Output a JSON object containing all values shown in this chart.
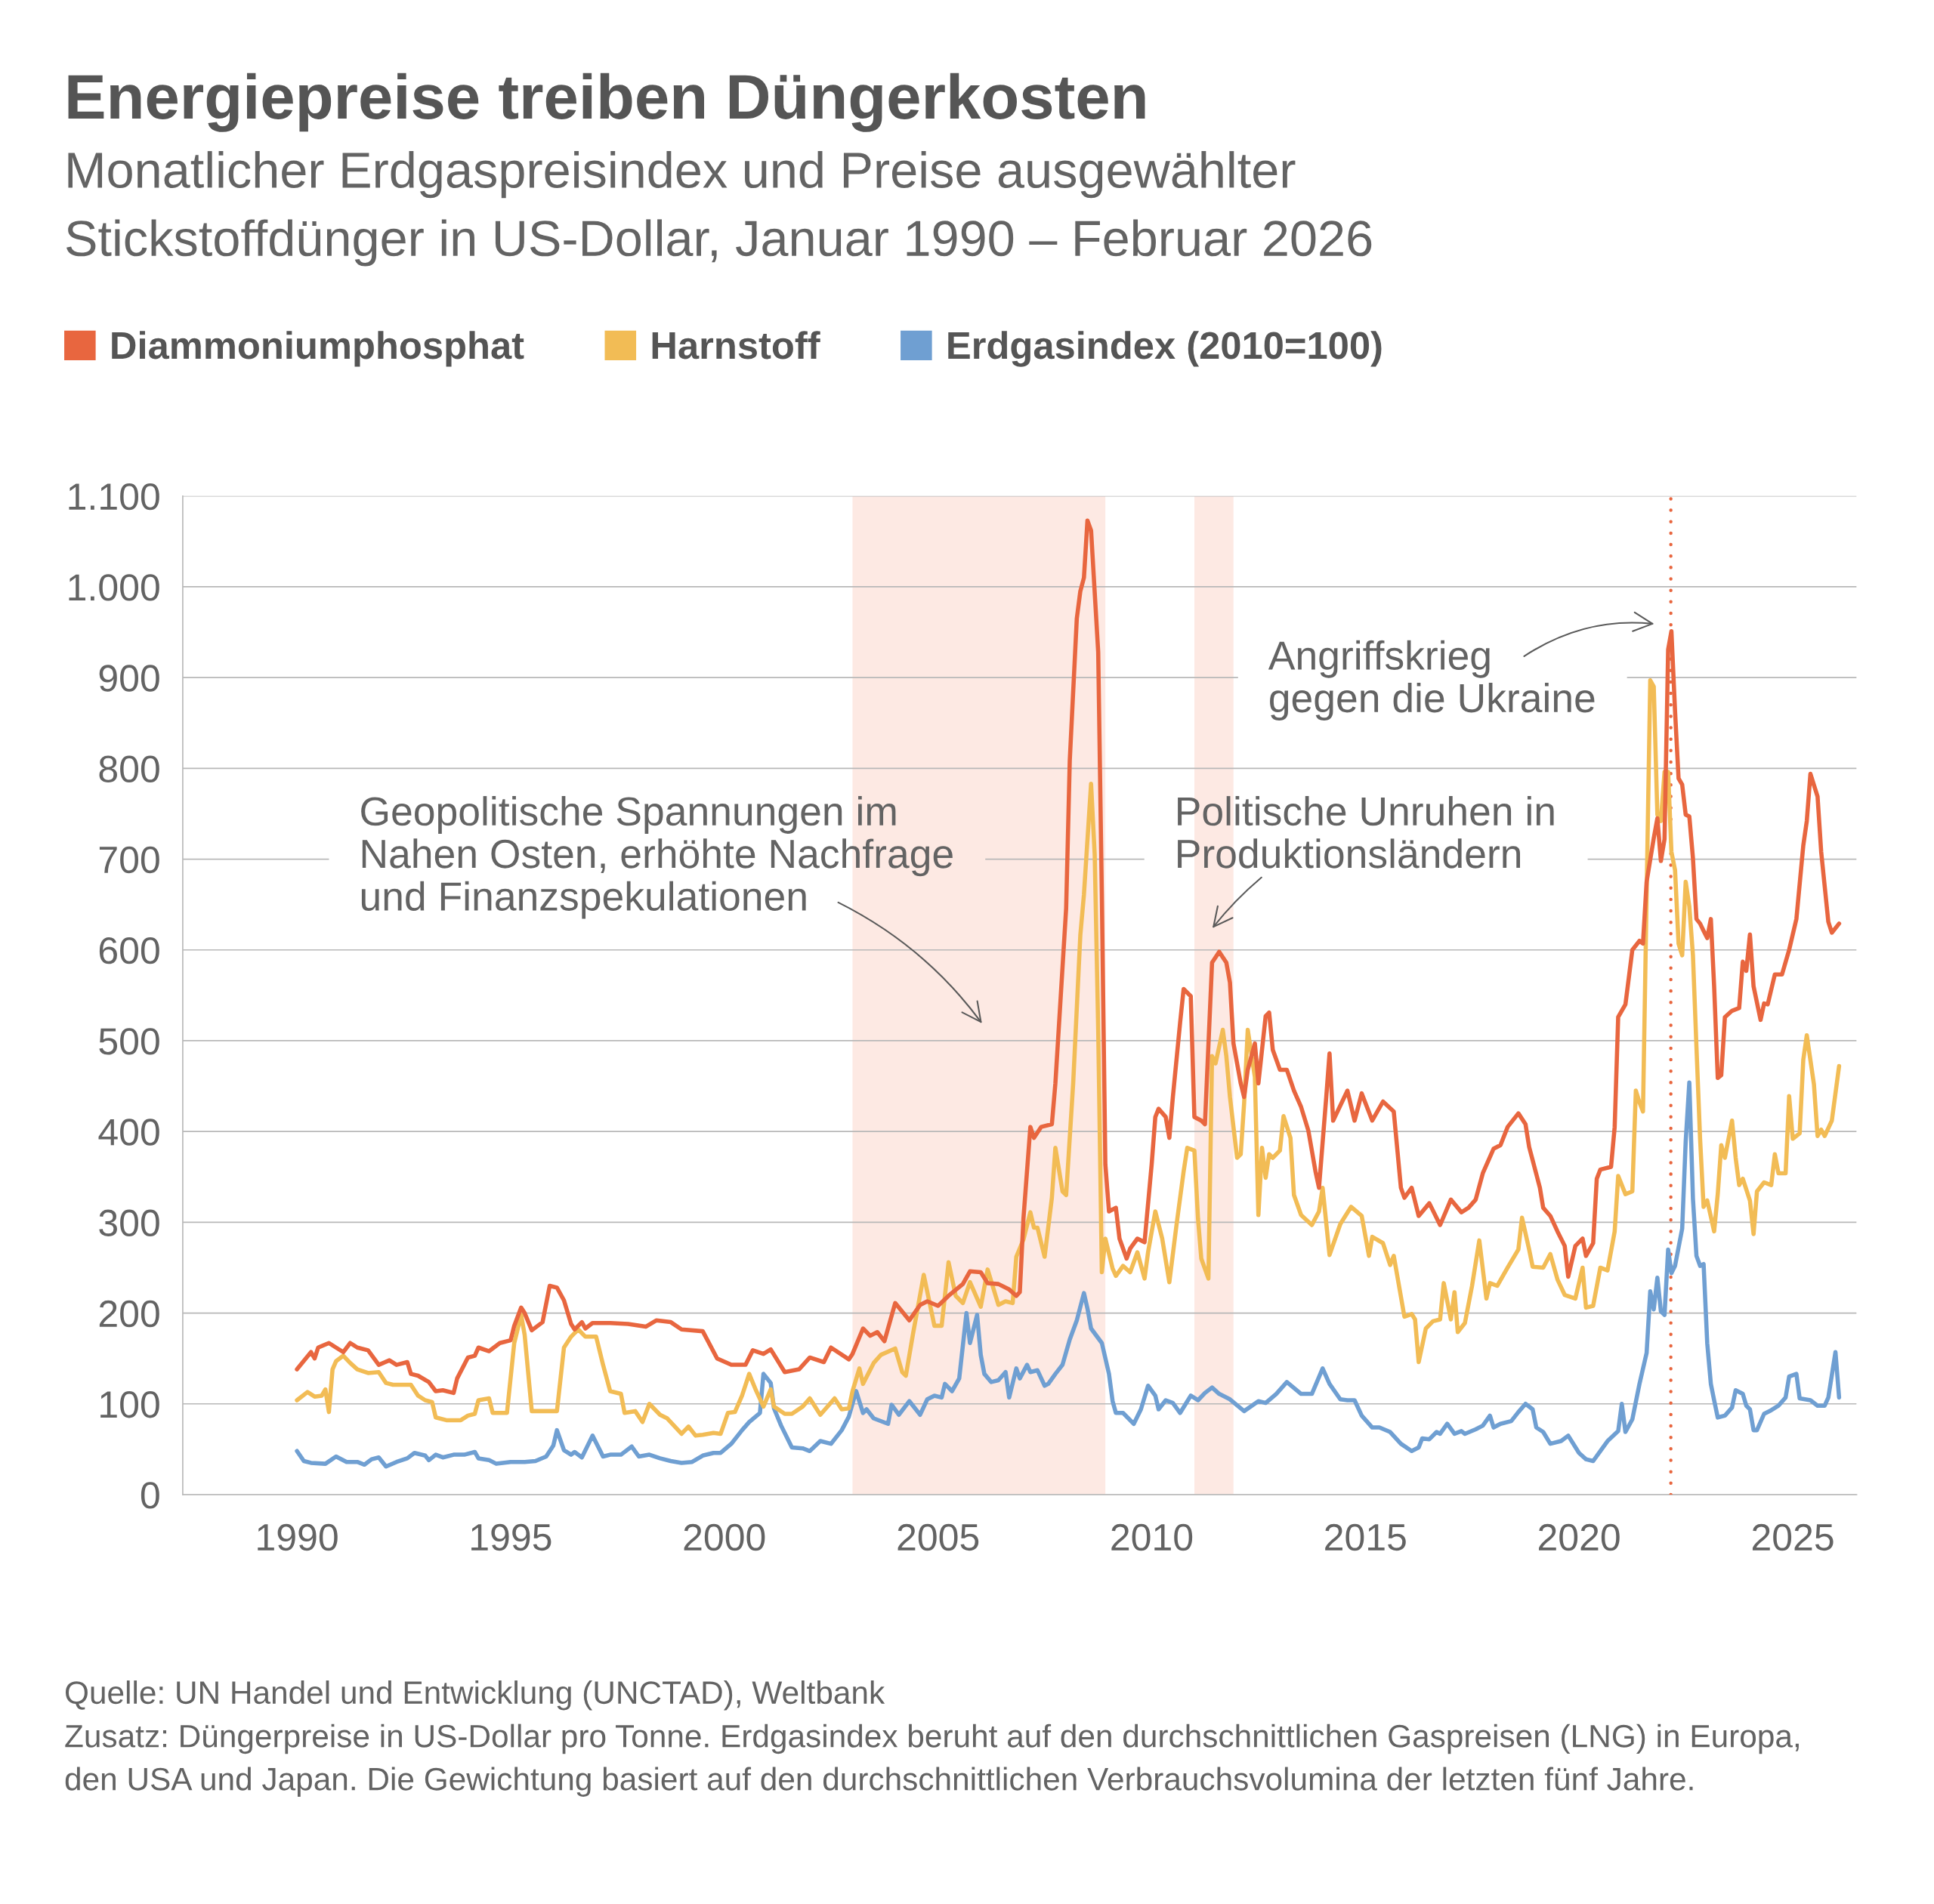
{
  "chart_data": {
    "type": "line",
    "title": "Energiepreise treiben Düngerkosten",
    "subtitle": "Monatlicher Erdgaspreisindex und Preise ausgewählter\nStickstoffdünger in US-Dollar, Januar 1990 – Februar 2026",
    "series": [
      {
        "name": "Diammoniumphosphat",
        "color": "#e8663f",
        "x": [
          "1990-01",
          "1990-05",
          "1990-06",
          "1990-07",
          "1990-10",
          "1990-12",
          "1991-02",
          "1991-04",
          "1991-06",
          "1991-09",
          "1991-12",
          "1992-03",
          "1992-05",
          "1992-08",
          "1992-09",
          "1992-11",
          "1993-02",
          "1993-04",
          "1993-06",
          "1993-09",
          "1993-10",
          "1994-01",
          "1994-03",
          "1994-04",
          "1994-07",
          "1994-10",
          "1995-01",
          "1995-02",
          "1995-04",
          "1995-05",
          "1995-07",
          "1995-10",
          "1995-12",
          "1996-02",
          "1996-04",
          "1996-06",
          "1996-07",
          "1996-09",
          "1996-10",
          "1996-12",
          "1997-05",
          "1997-10",
          "1998-03",
          "1998-06",
          "1998-10",
          "1999-01",
          "1999-07",
          "1999-11",
          "2000-03",
          "2000-07",
          "2000-09",
          "2000-12",
          "2001-02",
          "2001-06",
          "2001-10",
          "2002-01",
          "2002-05",
          "2002-07",
          "2002-12",
          "2003-01",
          "2003-04",
          "2003-06",
          "2003-08",
          "2003-10",
          "2004-01",
          "2004-05",
          "2004-08",
          "2004-10",
          "2005-01",
          "2005-04",
          "2005-08",
          "2005-10",
          "2006-01",
          "2006-03",
          "2006-06",
          "2006-09",
          "2006-11",
          "2006-12",
          "2007-01",
          "2007-03",
          "2007-04",
          "2007-06",
          "2007-09",
          "2007-10",
          "2008-01",
          "2008-02",
          "2008-04",
          "2008-05",
          "2008-06",
          "2008-07",
          "2008-08",
          "2008-10",
          "2008-11",
          "2008-12",
          "2009-01",
          "2009-03",
          "2009-04",
          "2009-06",
          "2009-07",
          "2009-09",
          "2009-11",
          "2010-01",
          "2010-02",
          "2010-03",
          "2010-05",
          "2010-06",
          "2010-07",
          "2010-09",
          "2010-10",
          "2010-12",
          "2011-01",
          "2011-03",
          "2011-04",
          "2011-06",
          "2011-08",
          "2011-10",
          "2011-11",
          "2011-12",
          "2012-02",
          "2012-03",
          "2012-04",
          "2012-06",
          "2012-07",
          "2012-09",
          "2012-10",
          "2012-11",
          "2013-01",
          "2013-03",
          "2013-05",
          "2013-07",
          "2013-09",
          "2013-11",
          "2013-12",
          "2014-02",
          "2014-03",
          "2014-04",
          "2014-08",
          "2014-10",
          "2014-12",
          "2015-03",
          "2015-06",
          "2015-09",
          "2015-11",
          "2015-12",
          "2016-02",
          "2016-04",
          "2016-07",
          "2016-10",
          "2017-01",
          "2017-04",
          "2017-06",
          "2017-08",
          "2017-10",
          "2018-01",
          "2018-03",
          "2018-05",
          "2018-08",
          "2018-10",
          "2018-11",
          "2019-02",
          "2019-03",
          "2019-05",
          "2019-07",
          "2019-09",
          "2019-10",
          "2019-12",
          "2020-02",
          "2020-03",
          "2020-05",
          "2020-06",
          "2020-07",
          "2020-10",
          "2020-11",
          "2020-12",
          "2021-02",
          "2021-04",
          "2021-06",
          "2021-07",
          "2021-08",
          "2021-10",
          "2021-11",
          "2021-12",
          "2022-01",
          "2022-02",
          "2022-03",
          "2022-04",
          "2022-05",
          "2022-06",
          "2022-07",
          "2022-08",
          "2022-09",
          "2022-10",
          "2022-11",
          "2022-12",
          "2023-01",
          "2023-02",
          "2023-03",
          "2023-04",
          "2023-05",
          "2023-06",
          "2023-08",
          "2023-10",
          "2023-11",
          "2023-12",
          "2024-01",
          "2024-02",
          "2024-04",
          "2024-05",
          "2024-06",
          "2024-08",
          "2024-10",
          "2024-12",
          "2025-02",
          "2025-04",
          "2025-05",
          "2025-06",
          "2025-08",
          "2025-09",
          "2025-11",
          "2025-12",
          "2026-02"
        ],
        "values": [
          138,
          157,
          150,
          162,
          167,
          162,
          157,
          167,
          162,
          159,
          143,
          148,
          143,
          146,
          133,
          131,
          124,
          114,
          115,
          112,
          128,
          151,
          153,
          162,
          158,
          167,
          170,
          186,
          206,
          200,
          181,
          190,
          230,
          228,
          214,
          188,
          182,
          190,
          183,
          189,
          189,
          188,
          185,
          192,
          190,
          182,
          180,
          150,
          143,
          143,
          159,
          155,
          160,
          135,
          138,
          151,
          146,
          162,
          149,
          155,
          183,
          175,
          179,
          169,
          211,
          192,
          209,
          213,
          208,
          219,
          232,
          246,
          245,
          233,
          232,
          226,
          219,
          223,
          304,
          405,
          393,
          405,
          408,
          453,
          646,
          809,
          965,
          995,
          1010,
          1073,
          1062,
          928,
          661,
          364,
          312,
          316,
          282,
          260,
          271,
          282,
          278,
          364,
          416,
          425,
          416,
          393,
          438,
          520,
          557,
          549,
          416,
          412,
          408,
          586,
          598,
          586,
          564,
          497,
          453,
          438,
          468,
          497,
          453,
          527,
          531,
          490,
          468,
          468,
          445,
          427,
          401,
          356,
          338,
          438,
          486,
          412,
          445,
          412,
          442,
          412,
          433,
          422,
          338,
          327,
          338,
          307,
          321,
          297,
          325,
          311,
          316,
          325,
          354,
          381,
          385,
          405,
          420,
          408,
          383,
          338,
          316,
          307,
          290,
          274,
          240,
          274,
          282,
          263,
          277,
          348,
          358,
          361,
          405,
          526,
          540,
          600,
          610,
          607,
          675,
          723,
          745,
          698,
          722,
          931,
          951,
          863,
          789,
          782,
          749,
          747,
          701,
          634,
          629,
          621,
          613,
          634,
          560,
          459,
          462,
          526,
          533,
          536,
          587,
          577,
          617,
          560,
          523,
          541,
          540,
          573,
          573,
          600,
          634,
          715,
          742,
          794,
          769,
          708,
          631,
          619,
          629
        ]
      },
      {
        "name": "Harnstoff",
        "color": "#f2bc55",
        "x": [
          "1990-01",
          "1990-04",
          "1990-06",
          "1990-08",
          "1990-09",
          "1990-10",
          "1990-11",
          "1990-12",
          "1991-02",
          "1991-04",
          "1991-06",
          "1991-09",
          "1991-12",
          "1992-02",
          "1992-04",
          "1992-09",
          "1992-11",
          "1993-01",
          "1993-03",
          "1993-04",
          "1993-07",
          "1993-11",
          "1994-01",
          "1994-03",
          "1994-04",
          "1994-07",
          "1994-08",
          "1994-12",
          "1995-02",
          "1995-04",
          "1995-05",
          "1995-07",
          "1996-02",
          "1996-04",
          "1996-06",
          "1996-08",
          "1996-10",
          "1997-01",
          "1997-03",
          "1997-05",
          "1997-08",
          "1997-09",
          "1997-12",
          "1998-02",
          "1998-04",
          "1998-07",
          "1998-09",
          "1999-01",
          "1999-03",
          "1999-05",
          "1999-07",
          "1999-10",
          "1999-12",
          "2000-02",
          "2000-04",
          "2000-06",
          "2000-08",
          "2000-10",
          "2000-12",
          "2001-02",
          "2001-03",
          "2001-06",
          "2001-08",
          "2001-11",
          "2002-01",
          "2002-04",
          "2002-08",
          "2002-10",
          "2002-12",
          "2003-01",
          "2003-03",
          "2003-04",
          "2003-07",
          "2003-09",
          "2004-01",
          "2004-03",
          "2004-04",
          "2004-06",
          "2004-09",
          "2004-12",
          "2005-02",
          "2005-04",
          "2005-06",
          "2005-08",
          "2005-10",
          "2006-01",
          "2006-03",
          "2006-06",
          "2006-08",
          "2006-10",
          "2006-11",
          "2007-01",
          "2007-03",
          "2007-04",
          "2007-05",
          "2007-07",
          "2007-09",
          "2007-10",
          "2007-12",
          "2008-01",
          "2008-03",
          "2008-05",
          "2008-06",
          "2008-08",
          "2008-09",
          "2008-10",
          "2008-11",
          "2008-12",
          "2009-02",
          "2009-03",
          "2009-05",
          "2009-07",
          "2009-09",
          "2009-11",
          "2009-12",
          "2010-02",
          "2010-04",
          "2010-06",
          "2010-08",
          "2010-10",
          "2010-11",
          "2011-01",
          "2011-02",
          "2011-03",
          "2011-05",
          "2011-06",
          "2011-07",
          "2011-09",
          "2011-10",
          "2011-11",
          "2012-01",
          "2012-02",
          "2012-03",
          "2012-04",
          "2012-06",
          "2012-07",
          "2012-08",
          "2012-09",
          "2012-10",
          "2012-11",
          "2013-01",
          "2013-02",
          "2013-04",
          "2013-05",
          "2013-07",
          "2013-10",
          "2013-12",
          "2014-01",
          "2014-03",
          "2014-06",
          "2014-09",
          "2014-12",
          "2015-02",
          "2015-03",
          "2015-06",
          "2015-08",
          "2015-09",
          "2015-12",
          "2016-02",
          "2016-03",
          "2016-04",
          "2016-06",
          "2016-08",
          "2016-10",
          "2016-11",
          "2017-01",
          "2017-02",
          "2017-03",
          "2017-05",
          "2017-07",
          "2017-09",
          "2017-11",
          "2017-12",
          "2018-02",
          "2018-05",
          "2018-08",
          "2018-09",
          "2018-11",
          "2018-12",
          "2019-03",
          "2019-05",
          "2019-07",
          "2019-09",
          "2019-12",
          "2020-02",
          "2020-03",
          "2020-05",
          "2020-07",
          "2020-09",
          "2020-11",
          "2020-12",
          "2021-02",
          "2021-04",
          "2021-05",
          "2021-06",
          "2021-07",
          "2021-08",
          "2021-09",
          "2021-10",
          "2021-11",
          "2021-12",
          "2022-01",
          "2022-02",
          "2022-03",
          "2022-04",
          "2022-05",
          "2022-06",
          "2022-07",
          "2022-08",
          "2022-09",
          "2022-10",
          "2022-11",
          "2022-12",
          "2023-01",
          "2023-03",
          "2023-04",
          "2023-05",
          "2023-06",
          "2023-08",
          "2023-09",
          "2023-10",
          "2023-11",
          "2024-01",
          "2024-02",
          "2024-03",
          "2024-05",
          "2024-07",
          "2024-08",
          "2024-09",
          "2024-11",
          "2024-12",
          "2025-01",
          "2025-03",
          "2025-04",
          "2025-05",
          "2025-07",
          "2025-08",
          "2025-09",
          "2025-10",
          "2025-12",
          "2026-02"
        ],
        "values": [
          104,
          113,
          108,
          109,
          116,
          91,
          138,
          147,
          153,
          145,
          138,
          134,
          135,
          123,
          121,
          121,
          109,
          104,
          102,
          85,
          82,
          82,
          87,
          89,
          104,
          106,
          90,
          90,
          167,
          198,
          176,
          92,
          92,
          162,
          174,
          182,
          174,
          174,
          143,
          114,
          111,
          90,
          92,
          80,
          100,
          88,
          84,
          67,
          75,
          65,
          66,
          68,
          67,
          90,
          91,
          109,
          133,
          114,
          97,
          116,
          97,
          89,
          89,
          97,
          106,
          88,
          106,
          94,
          95,
          114,
          139,
          122,
          145,
          154,
          161,
          135,
          131,
          177,
          242,
          186,
          186,
          256,
          219,
          211,
          234,
          207,
          248,
          209,
          213,
          211,
          262,
          281,
          311,
          294,
          294,
          262,
          327,
          382,
          334,
          330,
          453,
          616,
          661,
          783,
          705,
          512,
          245,
          282,
          249,
          241,
          252,
          245,
          267,
          238,
          267,
          312,
          282,
          234,
          297,
          356,
          382,
          379,
          304,
          260,
          238,
          483,
          475,
          512,
          483,
          438,
          371,
          375,
          431,
          512,
          460,
          308,
          382,
          349,
          375,
          371,
          379,
          417,
          393,
          330,
          308,
          297,
          312,
          338,
          264,
          298,
          317,
          307,
          263,
          284,
          277,
          253,
          263,
          196,
          199,
          193,
          146,
          183,
          191,
          193,
          233,
          193,
          223,
          179,
          189,
          230,
          280,
          216,
          233,
          230,
          250,
          270,
          305,
          270,
          251,
          250,
          265,
          237,
          220,
          216,
          250,
          206,
          208,
          250,
          247,
          290,
          351,
          331,
          334,
          445,
          432,
          422,
          661,
          897,
          890,
          749,
          742,
          796,
          796,
          708,
          688,
          607,
          594,
          675,
          648,
          594,
          493,
          392,
          317,
          324,
          290,
          331,
          385,
          371,
          412,
          371,
          341,
          348,
          324,
          287,
          334,
          344,
          341,
          375,
          354,
          354,
          439,
          392,
          398,
          479,
          506,
          452,
          395,
          402,
          395,
          412,
          472
        ]
      },
      {
        "name": "Erdgasindex (2010=100)",
        "color": "#6f9fd2",
        "x": [
          "1990-01",
          "1990-03",
          "1990-05",
          "1990-09",
          "1990-12",
          "1991-03",
          "1991-06",
          "1991-08",
          "1991-10",
          "1991-12",
          "1992-02",
          "1992-05",
          "1992-08",
          "1992-10",
          "1993-01",
          "1993-02",
          "1993-04",
          "1993-06",
          "1993-09",
          "1993-12",
          "1994-03",
          "1994-04",
          "1994-07",
          "1994-09",
          "1995-01",
          "1995-05",
          "1995-08",
          "1995-11",
          "1996-01",
          "1996-02",
          "1996-04",
          "1996-06",
          "1996-07",
          "1996-09",
          "1996-12",
          "1997-03",
          "1997-05",
          "1997-08",
          "1997-11",
          "1998-01",
          "1998-04",
          "1998-07",
          "1998-10",
          "1999-01",
          "1999-04",
          "1999-07",
          "1999-10",
          "1999-12",
          "2000-03",
          "2000-06",
          "2000-08",
          "2000-11",
          "2000-12",
          "2001-02",
          "2001-03",
          "2001-05",
          "2001-08",
          "2001-11",
          "2002-01",
          "2002-04",
          "2002-07",
          "2002-10",
          "2002-12",
          "2003-02",
          "2003-04",
          "2003-05",
          "2003-07",
          "2003-11",
          "2003-12",
          "2004-02",
          "2004-05",
          "2004-08",
          "2004-10",
          "2004-12",
          "2005-02",
          "2005-03",
          "2005-05",
          "2005-07",
          "2005-09",
          "2005-10",
          "2005-12",
          "2006-01",
          "2006-02",
          "2006-04",
          "2006-06",
          "2006-08",
          "2006-09",
          "2006-11",
          "2006-12",
          "2007-02",
          "2007-03",
          "2007-05",
          "2007-07",
          "2007-08",
          "2007-10",
          "2007-12",
          "2008-02",
          "2008-04",
          "2008-06",
          "2008-07",
          "2008-08",
          "2008-11",
          "2009-01",
          "2009-02",
          "2009-03",
          "2009-05",
          "2009-08",
          "2009-10",
          "2009-12",
          "2010-02",
          "2010-03",
          "2010-05",
          "2010-07",
          "2010-09",
          "2010-12",
          "2011-02",
          "2011-04",
          "2011-06",
          "2011-08",
          "2011-11",
          "2012-03",
          "2012-07",
          "2012-09",
          "2012-12",
          "2013-03",
          "2013-07",
          "2013-10",
          "2014-01",
          "2014-03",
          "2014-06",
          "2014-08",
          "2014-10",
          "2014-12",
          "2015-03",
          "2015-05",
          "2015-08",
          "2015-11",
          "2016-02",
          "2016-04",
          "2016-05",
          "2016-07",
          "2016-09",
          "2016-10",
          "2016-12",
          "2017-02",
          "2017-04",
          "2017-05",
          "2017-08",
          "2017-10",
          "2017-12",
          "2018-01",
          "2018-03",
          "2018-06",
          "2018-08",
          "2018-10",
          "2018-12",
          "2019-01",
          "2019-03",
          "2019-05",
          "2019-08",
          "2019-10",
          "2020-01",
          "2020-03",
          "2020-05",
          "2020-07",
          "2020-09",
          "2020-12",
          "2021-01",
          "2021-02",
          "2021-04",
          "2021-06",
          "2021-08",
          "2021-09",
          "2021-10",
          "2021-11",
          "2021-12",
          "2022-01",
          "2022-02",
          "2022-03",
          "2022-04",
          "2022-06",
          "2022-07",
          "2022-08",
          "2022-09",
          "2022-10",
          "2022-11",
          "2022-12",
          "2023-01",
          "2023-02",
          "2023-03",
          "2023-04",
          "2023-06",
          "2023-08",
          "2023-09",
          "2023-11",
          "2023-12",
          "2024-01",
          "2024-02",
          "2024-03",
          "2024-05",
          "2024-07",
          "2024-09",
          "2024-11",
          "2024-12",
          "2025-02",
          "2025-03",
          "2025-06",
          "2025-08",
          "2025-10",
          "2025-11",
          "2026-01",
          "2026-02"
        ],
        "values": [
          48,
          37,
          35,
          34,
          42,
          36,
          36,
          33,
          39,
          41,
          31,
          36,
          40,
          46,
          43,
          38,
          44,
          41,
          44,
          44,
          47,
          40,
          38,
          34,
          36,
          36,
          37,
          42,
          54,
          71,
          49,
          44,
          47,
          41,
          65,
          42,
          44,
          44,
          53,
          42,
          44,
          40,
          37,
          35,
          36,
          43,
          46,
          46,
          56,
          71,
          80,
          90,
          133,
          123,
          95,
          76,
          52,
          51,
          48,
          59,
          56,
          71,
          86,
          114,
          90,
          94,
          84,
          78,
          99,
          88,
          103,
          88,
          105,
          109,
          107,
          122,
          114,
          128,
          200,
          167,
          198,
          154,
          133,
          124,
          126,
          135,
          107,
          139,
          128,
          143,
          135,
          137,
          120,
          122,
          133,
          143,
          171,
          192,
          222,
          205,
          183,
          167,
          133,
          103,
          90,
          90,
          78,
          94,
          120,
          109,
          94,
          104,
          101,
          90,
          109,
          104,
          112,
          118,
          111,
          105,
          92,
          103,
          101,
          111,
          124,
          111,
          111,
          139,
          122,
          105,
          104,
          104,
          87,
          74,
          74,
          69,
          56,
          48,
          52,
          62,
          61,
          69,
          67,
          78,
          67,
          70,
          67,
          72,
          76,
          87,
          74,
          78,
          81,
          91,
          100,
          94,
          74,
          69,
          56,
          59,
          65,
          46,
          39,
          37,
          48,
          59,
          70,
          100,
          69,
          83,
          122,
          156,
          224,
          204,
          239,
          202,
          198,
          270,
          244,
          252,
          293,
          389,
          454,
          326,
          263,
          252,
          254,
          167,
          122,
          104,
          85,
          87,
          96,
          115,
          111,
          98,
          94,
          71,
          71,
          89,
          93,
          98,
          107,
          130,
          133,
          106,
          104,
          98,
          98,
          107,
          157,
          107
        ]
      }
    ],
    "xlim": [
      "1987-05",
      "2026-07"
    ],
    "xticks": [
      "1990",
      "1995",
      "2000",
      "2005",
      "2010",
      "2015",
      "2020",
      "2025"
    ],
    "ylim": [
      0,
      1100
    ],
    "yticks": [
      0,
      100,
      200,
      300,
      400,
      500,
      600,
      700,
      800,
      900,
      {
        "value": 1000,
        "label": "1.000"
      },
      {
        "value": 1100,
        "label": "1.100"
      }
    ],
    "grid": "y",
    "legend": "top left",
    "bands": [
      {
        "axis": "x",
        "from": "2003-01",
        "to": "2008-12",
        "color": "#fde9e3",
        "label": "Geopolitische Spannungen im\nNahen Osten, erhöhte Nachfrage\nund Finanzspekulationen"
      },
      {
        "axis": "x",
        "from": "2011-01",
        "to": "2011-12",
        "color": "#fde9e3",
        "label": "Politische Unruhen in\nProduktionsländern"
      }
    ],
    "ref_lines": [
      {
        "axis": "x",
        "value": "2022-02-24",
        "color": "#e8663f",
        "line_style": "dotted",
        "label": "Angriffskrieg\ngegen die Ukraine"
      }
    ],
    "annotations": [
      "Quelle: UN Handel und Entwicklung (UNCTAD), Weltbank",
      "Zusatz: Düngerpreise in US-Dollar pro Tonne. Erdgasindex beruht auf den durchschnittlichen Gaspreisen (LNG) in Europa,\nden USA und Japan. Die Gewichtung basiert auf den durchschnittlichen Verbrauchsvolumina der letzten fünf Jahre."
    ]
  }
}
